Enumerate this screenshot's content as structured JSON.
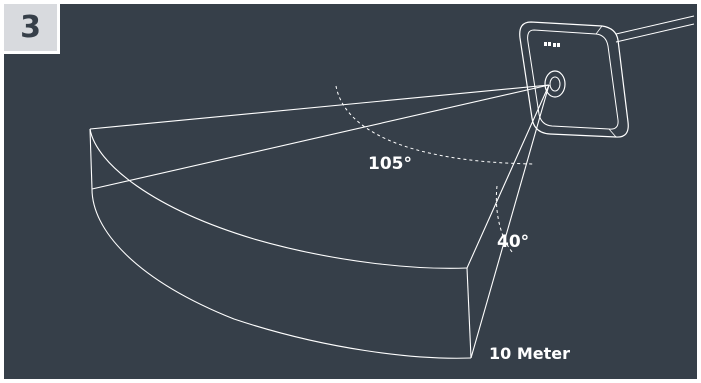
{
  "step": {
    "number": "3"
  },
  "sensor": {
    "logo_icon": "brand-logo-icon",
    "lens_icon": "sensor-lens-icon"
  },
  "angles": {
    "horizontal": "105°",
    "vertical": "40°"
  },
  "range": {
    "label": "10 Meter"
  },
  "colors": {
    "background": "#363f49",
    "line": "#ffffff",
    "badge": "#d8dade"
  }
}
